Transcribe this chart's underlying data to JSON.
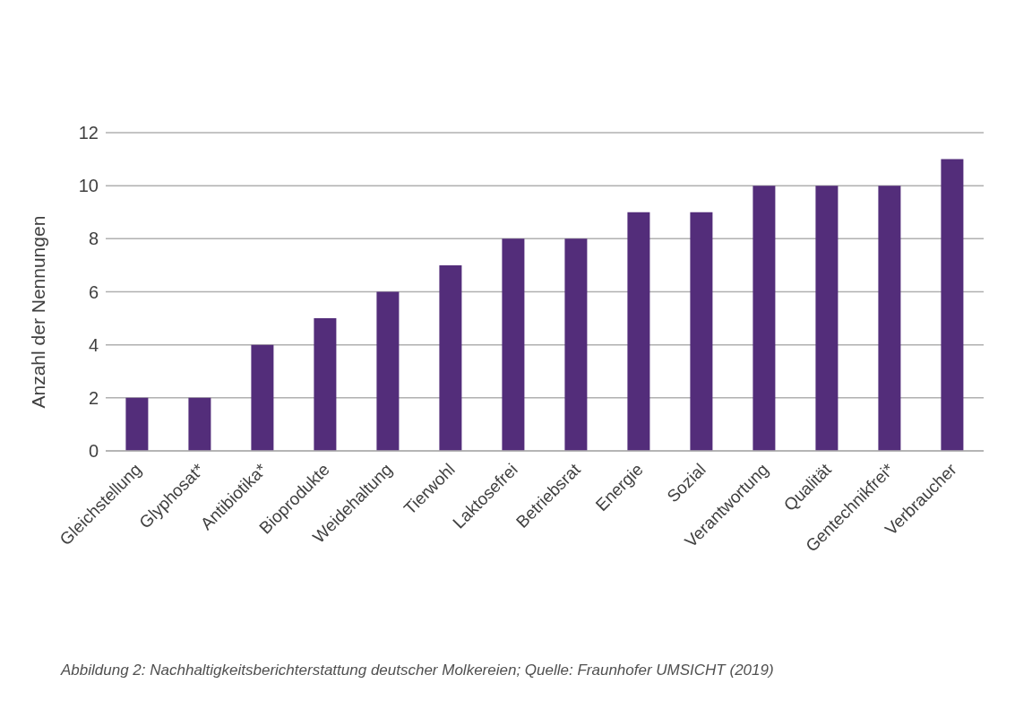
{
  "chart_data": {
    "type": "bar",
    "ylabel": "Anzahl der Nennungen",
    "categories": [
      "Gleichstellung",
      "Glyphosat*",
      "Antibiotika*",
      "Bioprodukte",
      "Weidehaltung",
      "Tierwohl",
      "Laktosefrei",
      "Betriebsrat",
      "Energie",
      "Sozial",
      "Verantwortung",
      "Qualität",
      "Gentechnikfrei*",
      "Verbraucher"
    ],
    "values": [
      2,
      2,
      4,
      5,
      6,
      7,
      8,
      8,
      9,
      9,
      10,
      10,
      10,
      11
    ],
    "color": "#532d7a",
    "ylim": [
      0,
      12
    ],
    "yticks": [
      0,
      2,
      4,
      6,
      8,
      10,
      12
    ],
    "grid": "y",
    "annotations": [
      "Abbildung 2: Nachhaltigkeitsberichterstattung deutscher Molkereien; Quelle: Fraunhofer UMSICHT (2019)"
    ]
  }
}
